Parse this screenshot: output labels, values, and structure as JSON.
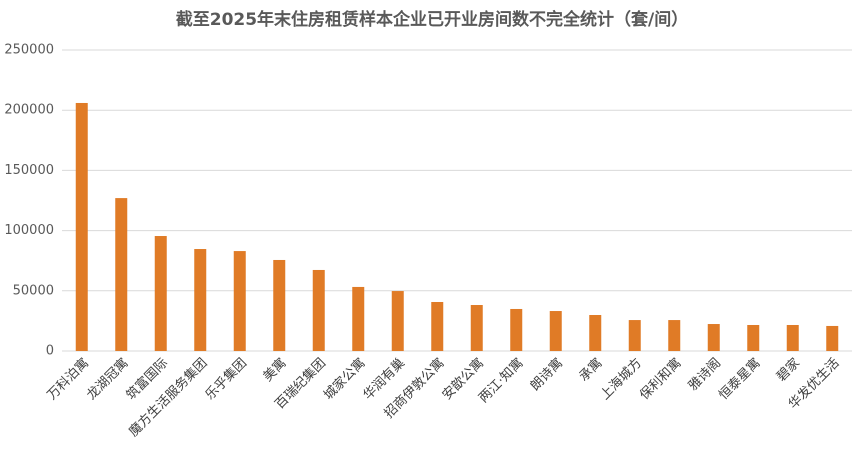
{
  "chart_data": {
    "type": "bar",
    "title": "截至2025年末住房租赁样本企业已开业房间数不完全统计（套/间）",
    "categories": [
      "万科泊寓",
      "龙湖冠寓",
      "筑富国际",
      "魔方生活服务集团",
      "乐乎集团",
      "美寓",
      "百瑞纪集团",
      "城家公寓",
      "华润有巢",
      "招商伊敦公寓",
      "安歆公寓",
      "两江·知寓",
      "朗诗寓",
      "承寓",
      "上海城方",
      "保利和寓",
      "雅诗阁",
      "恒泰星寓",
      "碧家",
      "华发优生活"
    ],
    "values": [
      206000,
      127000,
      95500,
      84700,
      83000,
      75600,
      67300,
      53200,
      49800,
      40700,
      38200,
      34900,
      33200,
      29900,
      25700,
      25700,
      22400,
      21600,
      21600,
      20800
    ],
    "color": "#e07b26",
    "ylim": [
      0,
      250000
    ],
    "yticks": [
      0,
      50000,
      100000,
      150000,
      200000,
      250000
    ],
    "grid": true
  }
}
